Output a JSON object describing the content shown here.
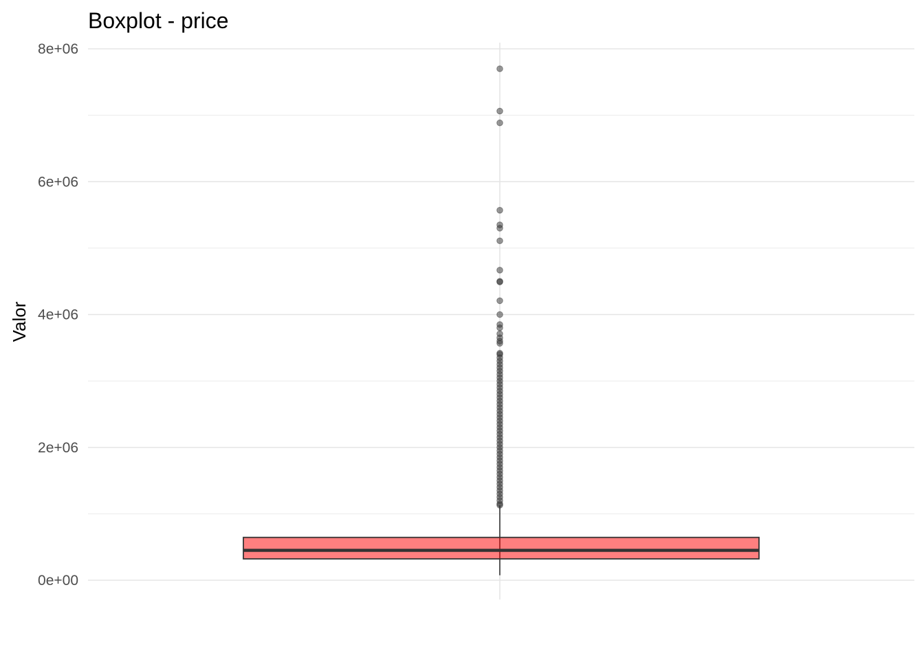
{
  "chart_data": {
    "type": "boxplot",
    "title": "Boxplot - price",
    "xlabel": "",
    "ylabel": "Valor",
    "ylim": [
      -300000,
      8200000
    ],
    "y_ticks": [
      0,
      2000000,
      4000000,
      6000000,
      8000000
    ],
    "y_tick_labels": [
      "0e+00",
      "2e+06",
      "4e+06",
      "6e+06",
      "8e+06"
    ],
    "grid": true,
    "box": {
      "fill": "#ff0000",
      "fill_opacity": 0.5,
      "lower_whisker": 75000,
      "q1": 322000,
      "median": 450000,
      "q3": 645000,
      "upper_whisker": 1127000
    },
    "outliers": [
      7700000,
      7062500,
      6885000,
      5570000,
      5350000,
      5300000,
      5110000,
      4668000,
      4500000,
      4490000,
      4208000,
      4000000,
      3850000,
      3800000,
      3710000,
      3650000,
      3600000,
      3567000,
      3418000,
      3400000,
      3350000,
      3300000,
      3250000,
      3200000,
      3150000,
      3100000,
      3050000,
      3000000,
      2950000,
      2900000,
      2850000,
      2800000,
      2750000,
      2700000,
      2650000,
      2600000,
      2550000,
      2500000,
      2450000,
      2400000,
      2350000,
      2300000,
      2250000,
      2200000,
      2150000,
      2100000,
      2050000,
      2000000,
      1950000,
      1900000,
      1850000,
      1800000,
      1750000,
      1700000,
      1650000,
      1600000,
      1550000,
      1500000,
      1450000,
      1400000,
      1350000,
      1300000,
      1250000,
      1200000,
      1150000,
      1130000
    ]
  }
}
